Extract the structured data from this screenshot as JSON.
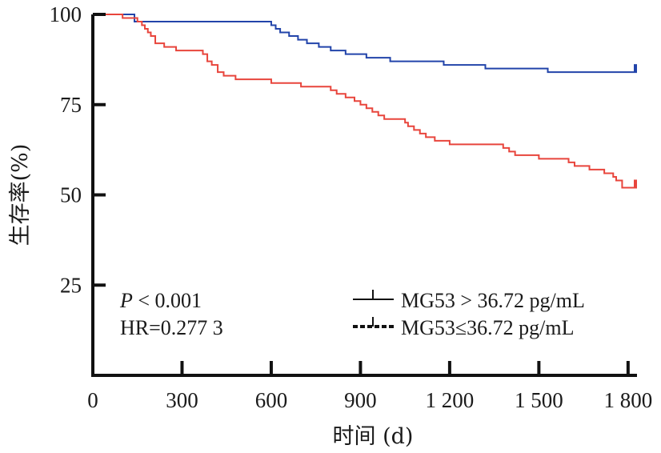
{
  "chart_data": {
    "type": "line",
    "title": "",
    "xlabel": "时间 (d)",
    "ylabel": "生存率(%)",
    "xlim": [
      0,
      1830
    ],
    "ylim": [
      0,
      100
    ],
    "x_ticks": [
      0,
      300,
      600,
      900,
      1200,
      1500,
      1800
    ],
    "x_tick_labels": [
      "0",
      "300",
      "600",
      "900",
      "1 200",
      "1 500",
      "1 800"
    ],
    "y_ticks": [
      25,
      50,
      75,
      100
    ],
    "y_tick_labels": [
      "25",
      "50",
      "75",
      "100"
    ],
    "annotations": {
      "p_prefix": "P",
      "p_rest": " < 0.001",
      "hr": "HR=0.277 3"
    },
    "legend_position": "bottom-right",
    "series": [
      {
        "name": "MG53 > 36.72 pg/mL",
        "color": "#2244aa",
        "style": "solid",
        "x": [
          0,
          130,
          140,
          590,
          600,
          615,
          630,
          660,
          690,
          720,
          760,
          800,
          850,
          920,
          950,
          1000,
          1110,
          1180,
          1320,
          1490,
          1530,
          1830
        ],
        "y": [
          100,
          100,
          98,
          98,
          97,
          96,
          95,
          94,
          93,
          92,
          91,
          90,
          89,
          88,
          88,
          87,
          87,
          86,
          85,
          85,
          84,
          84
        ]
      },
      {
        "name": "MG53≤36.72 pg/mL",
        "color": "#e8453c",
        "style": "dashed",
        "x": [
          0,
          50,
          100,
          150,
          165,
          175,
          185,
          195,
          210,
          240,
          280,
          360,
          370,
          385,
          400,
          420,
          440,
          480,
          600,
          700,
          730,
          750,
          790,
          800,
          820,
          850,
          880,
          900,
          920,
          940,
          960,
          980,
          1050,
          1060,
          1080,
          1100,
          1120,
          1130,
          1150,
          1200,
          1250,
          1380,
          1400,
          1420,
          1470,
          1500,
          1550,
          1600,
          1620,
          1640,
          1670,
          1700,
          1720,
          1750,
          1760,
          1780,
          1830
        ],
        "y": [
          100,
          100,
          99,
          98,
          97,
          96,
          95,
          94,
          92,
          91,
          90,
          90,
          89,
          87,
          86,
          84,
          83,
          82,
          81,
          80,
          80,
          80,
          80,
          79,
          78,
          77,
          76,
          75,
          74,
          73,
          72,
          71,
          70,
          69,
          68,
          67,
          66,
          66,
          65,
          64,
          64,
          63,
          62,
          61,
          61,
          60,
          60,
          59,
          58,
          58,
          57,
          57,
          56,
          55,
          54,
          52,
          52
        ]
      }
    ]
  }
}
